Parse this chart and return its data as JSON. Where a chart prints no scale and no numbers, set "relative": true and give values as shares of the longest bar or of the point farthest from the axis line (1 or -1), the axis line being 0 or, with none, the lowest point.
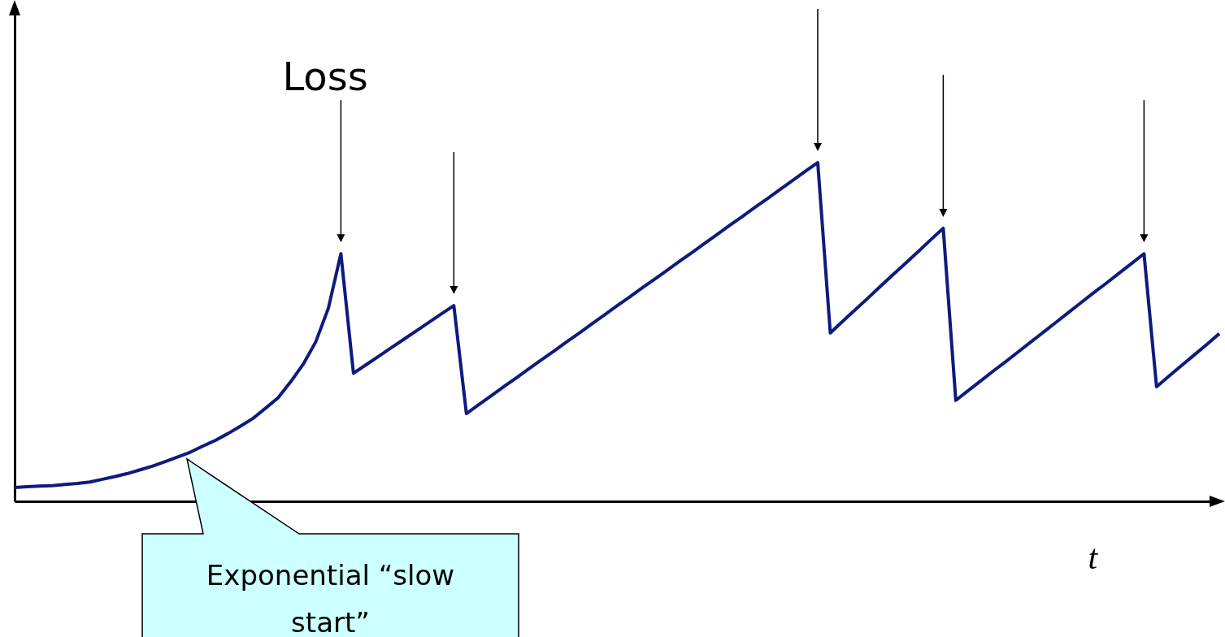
{
  "chart_data": {
    "type": "line",
    "relative": true,
    "xlabel": "t",
    "grid": false,
    "marker": "none",
    "line_style": "solid",
    "categories": [
      null,
      null,
      null,
      null,
      null,
      null,
      null,
      null,
      null,
      null,
      null,
      null,
      null,
      null,
      null,
      null,
      null,
      null,
      null,
      null,
      null,
      null,
      null,
      null,
      null,
      null,
      null,
      null,
      null,
      null,
      null,
      null,
      null,
      null,
      null,
      null,
      null,
      null,
      null,
      null,
      null,
      null,
      null,
      null,
      null,
      null,
      null,
      null,
      null,
      null,
      null,
      null,
      null,
      null,
      null,
      null,
      null,
      null,
      null,
      null,
      null,
      null,
      null,
      null,
      null,
      null,
      null,
      null,
      null,
      null,
      null,
      null,
      null,
      null,
      null,
      null,
      null,
      null,
      null,
      null,
      null,
      null,
      null,
      null,
      null,
      null,
      null,
      null,
      null,
      null,
      null,
      null,
      null,
      null,
      null,
      null,
      null
    ],
    "series": [
      {
        "color": "#0d1b7e",
        "values": [
          0.041,
          0.043,
          0.045,
          0.046,
          0.05,
          0.053,
          0.057,
          0.065,
          0.073,
          0.082,
          0.093,
          0.104,
          0.117,
          0.131,
          0.145,
          0.163,
          0.18,
          0.2,
          0.222,
          0.245,
          0.275,
          0.306,
          0.353,
          0.405,
          0.471,
          0.57,
          0.731,
          0.378,
          0.403,
          0.428,
          0.453,
          0.478,
          0.503,
          0.528,
          0.553,
          0.578,
          0.259,
          0.286,
          0.312,
          0.339,
          0.365,
          0.392,
          0.418,
          0.444,
          0.471,
          0.497,
          0.524,
          0.55,
          0.577,
          0.603,
          0.63,
          0.656,
          0.682,
          0.709,
          0.735,
          0.762,
          0.788,
          0.815,
          0.841,
          0.868,
          0.894,
          0.921,
          0.947,
          0.974,
          1,
          0.497,
          0.532,
          0.566,
          0.6,
          0.635,
          0.669,
          0.703,
          0.737,
          0.772,
          0.806,
          0.298,
          0.327,
          0.356,
          0.385,
          0.413,
          0.442,
          0.471,
          0.5,
          0.529,
          0.558,
          0.587,
          0.616,
          0.644,
          0.673,
          0.702,
          0.731,
          0.338,
          0.37,
          0.401,
          0.432,
          0.463,
          0.495
        ]
      }
    ],
    "annotations": [
      "Loss",
      "Exponential “slow start”"
    ]
  }
}
